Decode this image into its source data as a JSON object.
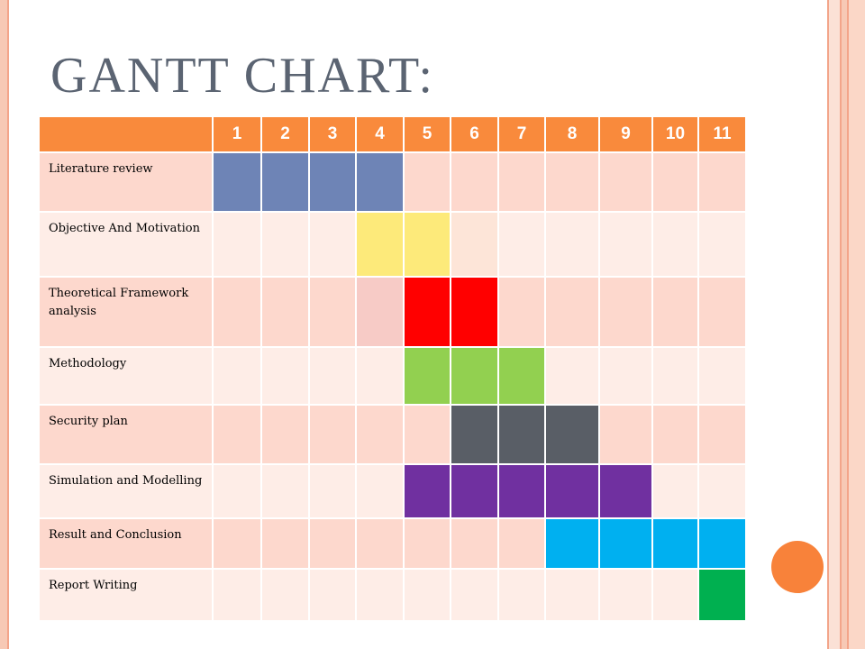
{
  "title": "GANTT CHART:",
  "months": [
    "1",
    "2",
    "3",
    "4",
    "5",
    "6",
    "7",
    "8",
    "9",
    "10",
    "11"
  ],
  "tasks": [
    {
      "label": "Literature review",
      "cells": [
        "#6e84b6",
        "#6e84b6",
        "#6e84b6",
        "#6e84b6",
        "",
        "",
        "",
        "",
        "",
        "",
        ""
      ]
    },
    {
      "label": "Objective And Motivation",
      "cells": [
        "",
        "",
        "",
        "#fdea7a",
        "#fdea7a",
        "#fde5d8",
        "",
        "",
        "",
        "",
        ""
      ]
    },
    {
      "label": "Theoretical Framework analysis",
      "cells": [
        "",
        "",
        "",
        "#f7cbc6",
        "#ff0000",
        "#ff0000",
        "",
        "",
        "",
        "",
        ""
      ]
    },
    {
      "label": "Methodology",
      "cells": [
        "",
        "",
        "",
        "",
        "#92d050",
        "#92d050",
        "#92d050",
        "",
        "",
        "",
        ""
      ]
    },
    {
      "label": "Security plan",
      "cells": [
        "",
        "",
        "",
        "",
        "",
        "#595e66",
        "#595e66",
        "#595e66",
        "",
        "",
        ""
      ]
    },
    {
      "label": "Simulation and Modelling",
      "cells": [
        "",
        "",
        "",
        "",
        "#7030a0",
        "#7030a0",
        "#7030a0",
        "#7030a0",
        "#7030a0",
        "",
        ""
      ]
    },
    {
      "label": "Result and Conclusion",
      "cells": [
        "",
        "",
        "",
        "",
        "",
        "",
        "",
        "#00b0f0",
        "#00b0f0",
        "#00b0f0",
        "#00b0f0"
      ]
    },
    {
      "label": "Report Writing",
      "cells": [
        "",
        "",
        "",
        "",
        "",
        "",
        "",
        "",
        "",
        "",
        "#00b050"
      ]
    }
  ],
  "colors": {
    "header": "#f98a3c",
    "row_odd": "#fdd8cd",
    "row_even": "#feede7",
    "title": "#5b6472",
    "accent_circle": "#f8823a"
  }
}
